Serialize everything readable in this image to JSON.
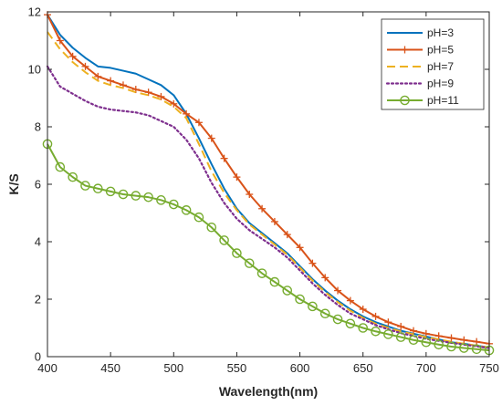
{
  "chart_data": {
    "type": "line",
    "xlabel": "Wavelength(nm)",
    "ylabel": "K/S",
    "xlim": [
      400,
      750
    ],
    "ylim": [
      0,
      12
    ],
    "xticks": [
      400,
      450,
      500,
      550,
      600,
      650,
      700,
      750
    ],
    "yticks": [
      0,
      2,
      4,
      6,
      8,
      10,
      12
    ],
    "grid": false,
    "legend_position": "top-right",
    "x": [
      400,
      410,
      420,
      430,
      440,
      450,
      460,
      470,
      480,
      490,
      500,
      510,
      520,
      530,
      540,
      550,
      560,
      570,
      580,
      590,
      600,
      610,
      620,
      630,
      640,
      650,
      660,
      670,
      680,
      690,
      700,
      710,
      720,
      730,
      740,
      750
    ],
    "series": [
      {
        "name": "pH=3",
        "color": "#0072BD",
        "line": "solid",
        "marker": "none",
        "values": [
          11.9,
          11.2,
          10.75,
          10.4,
          10.1,
          10.05,
          9.95,
          9.85,
          9.65,
          9.45,
          9.1,
          8.45,
          7.6,
          6.7,
          5.85,
          5.15,
          4.65,
          4.3,
          3.95,
          3.6,
          3.15,
          2.7,
          2.3,
          1.95,
          1.65,
          1.4,
          1.2,
          1.05,
          0.9,
          0.8,
          0.7,
          0.6,
          0.5,
          0.45,
          0.38,
          0.32
        ]
      },
      {
        "name": "pH=5",
        "color": "#D95319",
        "line": "solid",
        "marker": "plus",
        "values": [
          11.9,
          11.0,
          10.45,
          10.1,
          9.75,
          9.6,
          9.45,
          9.3,
          9.2,
          9.05,
          8.8,
          8.45,
          8.15,
          7.6,
          6.9,
          6.25,
          5.65,
          5.15,
          4.7,
          4.25,
          3.8,
          3.25,
          2.75,
          2.3,
          1.95,
          1.65,
          1.4,
          1.2,
          1.05,
          0.9,
          0.8,
          0.72,
          0.65,
          0.58,
          0.52,
          0.45
        ]
      },
      {
        "name": "pH=7",
        "color": "#EDB120",
        "line": "dashed",
        "marker": "none",
        "values": [
          11.3,
          10.7,
          10.25,
          9.9,
          9.6,
          9.45,
          9.35,
          9.2,
          9.1,
          8.95,
          8.7,
          8.3,
          7.4,
          6.45,
          5.7,
          5.1,
          4.6,
          4.25,
          3.9,
          3.55,
          3.1,
          2.65,
          2.25,
          1.9,
          1.6,
          1.35,
          1.15,
          1.0,
          0.88,
          0.78,
          0.68,
          0.6,
          0.52,
          0.45,
          0.38,
          0.32
        ]
      },
      {
        "name": "pH=9",
        "color": "#7E2F8E",
        "line": "dotted",
        "marker": "none",
        "values": [
          10.1,
          9.4,
          9.15,
          8.9,
          8.7,
          8.6,
          8.55,
          8.5,
          8.4,
          8.2,
          8.0,
          7.55,
          6.9,
          6.05,
          5.35,
          4.8,
          4.4,
          4.1,
          3.8,
          3.45,
          3.0,
          2.55,
          2.15,
          1.8,
          1.5,
          1.3,
          1.1,
          0.95,
          0.82,
          0.72,
          0.62,
          0.55,
          0.48,
          0.42,
          0.36,
          0.3
        ]
      },
      {
        "name": "pH=11",
        "color": "#77AC30",
        "line": "solid",
        "marker": "circle",
        "values": [
          7.4,
          6.6,
          6.25,
          5.95,
          5.85,
          5.75,
          5.65,
          5.6,
          5.55,
          5.45,
          5.3,
          5.1,
          4.85,
          4.5,
          4.05,
          3.6,
          3.25,
          2.9,
          2.6,
          2.3,
          2.0,
          1.75,
          1.5,
          1.3,
          1.15,
          1.0,
          0.88,
          0.78,
          0.68,
          0.58,
          0.5,
          0.42,
          0.35,
          0.3,
          0.26,
          0.22
        ]
      }
    ]
  }
}
